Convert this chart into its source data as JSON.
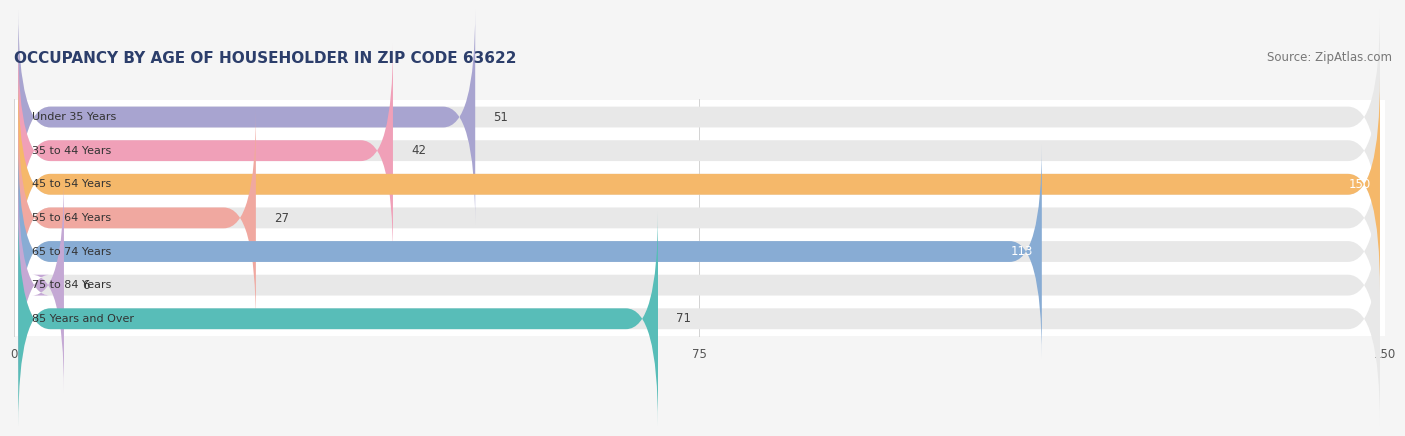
{
  "title": "OCCUPANCY BY AGE OF HOUSEHOLDER IN ZIP CODE 63622",
  "source": "Source: ZipAtlas.com",
  "categories": [
    "Under 35 Years",
    "35 to 44 Years",
    "45 to 54 Years",
    "55 to 64 Years",
    "65 to 74 Years",
    "75 to 84 Years",
    "85 Years and Over"
  ],
  "values": [
    51,
    42,
    150,
    27,
    113,
    6,
    71
  ],
  "bar_colors": [
    "#a8a4d0",
    "#f0a0b8",
    "#f5b86a",
    "#f0a8a0",
    "#88acd4",
    "#c4a8d4",
    "#58bdb8"
  ],
  "bar_bg_color": "#e8e8e8",
  "xlim": [
    0,
    150
  ],
  "xticks": [
    0,
    75,
    150
  ],
  "title_color": "#2c3e6b",
  "title_fontsize": 11,
  "source_fontsize": 8.5,
  "source_color": "#777777",
  "bar_height": 0.62,
  "background_color": "#f5f5f5",
  "rounding_size": 3.5
}
